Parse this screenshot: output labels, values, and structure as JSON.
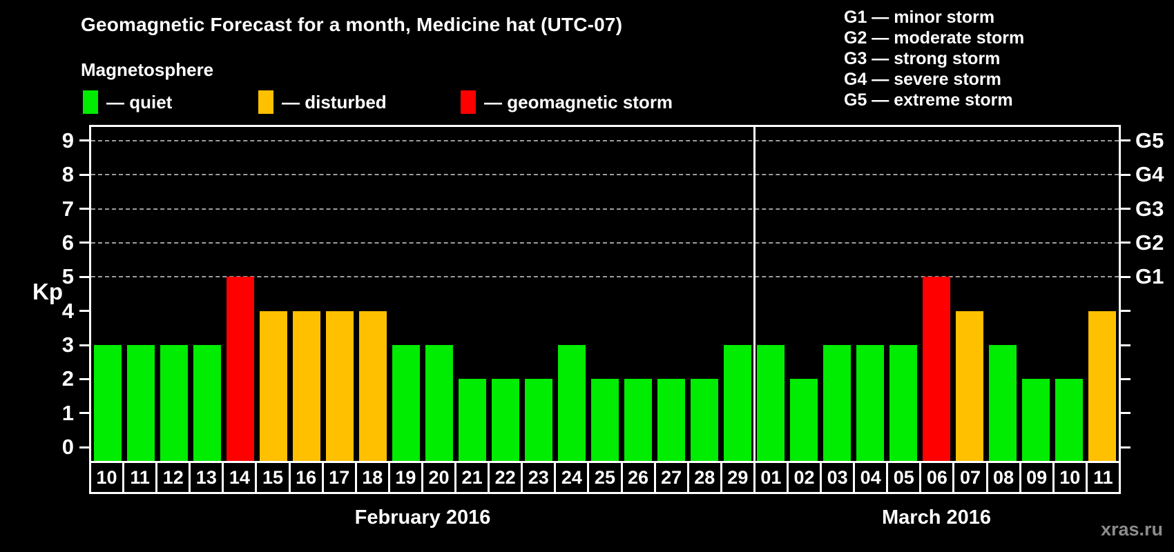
{
  "title": "Geomagnetic Forecast for a month, Medicine hat (UTC-07)",
  "subtitle": "Magnetosphere",
  "condition_legend": [
    {
      "key": "quiet",
      "label": "— quiet",
      "color": "#00ec00"
    },
    {
      "key": "disturbed",
      "label": "— disturbed",
      "color": "#ffc000"
    },
    {
      "key": "storm",
      "label": "— geomagnetic storm",
      "color": "#ff0000"
    }
  ],
  "storm_scale_legend": [
    "G1 — minor storm",
    "G2 — moderate storm",
    "G3 — strong storm",
    "G4 — severe storm",
    "G5 — extreme storm"
  ],
  "watermark": "xras.ru",
  "chart_data": {
    "type": "bar",
    "ylabel": "Kp",
    "ylim": [
      -0.4,
      9.4
    ],
    "yticks": [
      0,
      1,
      2,
      3,
      4,
      5,
      6,
      7,
      8,
      9
    ],
    "gridlines_at": [
      5,
      6,
      7,
      8,
      9
    ],
    "grid": "dashed-horizontal",
    "right_axis_labels": [
      {
        "kp": 5,
        "label": "G1"
      },
      {
        "kp": 6,
        "label": "G2"
      },
      {
        "kp": 7,
        "label": "G3"
      },
      {
        "kp": 8,
        "label": "G4"
      },
      {
        "kp": 9,
        "label": "G5"
      }
    ],
    "months": [
      {
        "label": "February 2016",
        "days": [
          {
            "day": "10",
            "kp": 3,
            "status": "quiet"
          },
          {
            "day": "11",
            "kp": 3,
            "status": "quiet"
          },
          {
            "day": "12",
            "kp": 3,
            "status": "quiet"
          },
          {
            "day": "13",
            "kp": 3,
            "status": "quiet"
          },
          {
            "day": "14",
            "kp": 5,
            "status": "storm"
          },
          {
            "day": "15",
            "kp": 4,
            "status": "disturbed"
          },
          {
            "day": "16",
            "kp": 4,
            "status": "disturbed"
          },
          {
            "day": "17",
            "kp": 4,
            "status": "disturbed"
          },
          {
            "day": "18",
            "kp": 4,
            "status": "disturbed"
          },
          {
            "day": "19",
            "kp": 3,
            "status": "quiet"
          },
          {
            "day": "20",
            "kp": 3,
            "status": "quiet"
          },
          {
            "day": "21",
            "kp": 2,
            "status": "quiet"
          },
          {
            "day": "22",
            "kp": 2,
            "status": "quiet"
          },
          {
            "day": "23",
            "kp": 2,
            "status": "quiet"
          },
          {
            "day": "24",
            "kp": 3,
            "status": "quiet"
          },
          {
            "day": "25",
            "kp": 2,
            "status": "quiet"
          },
          {
            "day": "26",
            "kp": 2,
            "status": "quiet"
          },
          {
            "day": "27",
            "kp": 2,
            "status": "quiet"
          },
          {
            "day": "28",
            "kp": 2,
            "status": "quiet"
          },
          {
            "day": "29",
            "kp": 3,
            "status": "quiet"
          }
        ]
      },
      {
        "label": "March 2016",
        "days": [
          {
            "day": "01",
            "kp": 3,
            "status": "quiet"
          },
          {
            "day": "02",
            "kp": 2,
            "status": "quiet"
          },
          {
            "day": "03",
            "kp": 3,
            "status": "quiet"
          },
          {
            "day": "04",
            "kp": 3,
            "status": "quiet"
          },
          {
            "day": "05",
            "kp": 3,
            "status": "quiet"
          },
          {
            "day": "06",
            "kp": 5,
            "status": "storm"
          },
          {
            "day": "07",
            "kp": 4,
            "status": "disturbed"
          },
          {
            "day": "08",
            "kp": 3,
            "status": "quiet"
          },
          {
            "day": "09",
            "kp": 2,
            "status": "quiet"
          },
          {
            "day": "10",
            "kp": 2,
            "status": "quiet"
          },
          {
            "day": "11",
            "kp": 4,
            "status": "disturbed"
          }
        ]
      }
    ]
  }
}
